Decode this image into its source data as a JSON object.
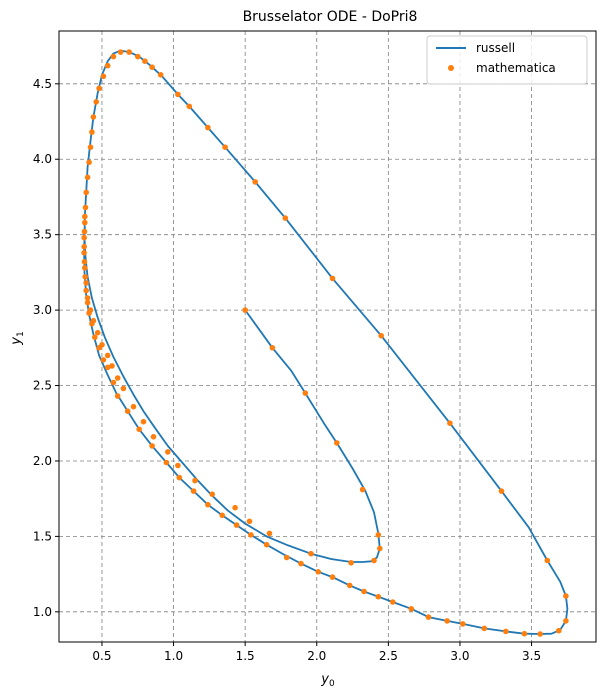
{
  "chart_data": {
    "type": "line",
    "title": "Brusselator ODE - DoPri8",
    "xlabel": "y",
    "xlabel_sub": "0",
    "ylabel": "y",
    "ylabel_sub": "1",
    "xlim": [
      0.2,
      3.95
    ],
    "ylim": [
      0.8,
      4.85
    ],
    "xticks": [
      0.5,
      1.0,
      1.5,
      2.0,
      2.5,
      3.0,
      3.5
    ],
    "xtick_labels": [
      "0.5",
      "1.0",
      "1.5",
      "2.0",
      "2.5",
      "3.0",
      "3.5"
    ],
    "yticks": [
      1.0,
      1.5,
      2.0,
      2.5,
      3.0,
      3.5,
      4.0,
      4.5
    ],
    "ytick_labels": [
      "1.0",
      "1.5",
      "2.0",
      "2.5",
      "3.0",
      "3.5",
      "4.0",
      "4.5"
    ],
    "grid": true,
    "legend_position": "top-right",
    "colors": {
      "russell": "#1f77b4",
      "mathematica": "#ff7f0e",
      "grid": "#808080"
    },
    "series": [
      {
        "name": "russell",
        "style": "line",
        "points": [
          [
            1.5,
            3.0
          ],
          [
            1.69,
            2.75
          ],
          [
            1.82,
            2.6
          ],
          [
            1.92,
            2.45
          ],
          [
            2.05,
            2.25
          ],
          [
            2.14,
            2.12
          ],
          [
            2.25,
            1.95
          ],
          [
            2.34,
            1.8
          ],
          [
            2.4,
            1.66
          ],
          [
            2.43,
            1.52
          ],
          [
            2.44,
            1.42
          ],
          [
            2.42,
            1.36
          ],
          [
            2.38,
            1.335
          ],
          [
            2.32,
            1.33
          ],
          [
            2.24,
            1.33
          ],
          [
            2.1,
            1.35
          ],
          [
            1.96,
            1.385
          ],
          [
            1.8,
            1.44
          ],
          [
            1.65,
            1.5
          ],
          [
            1.5,
            1.585
          ],
          [
            1.38,
            1.67
          ],
          [
            1.27,
            1.77
          ],
          [
            1.16,
            1.88
          ],
          [
            1.06,
            1.99
          ],
          [
            0.96,
            2.1
          ],
          [
            0.87,
            2.22
          ],
          [
            0.79,
            2.33
          ],
          [
            0.72,
            2.44
          ],
          [
            0.65,
            2.56
          ],
          [
            0.58,
            2.69
          ],
          [
            0.52,
            2.82
          ],
          [
            0.47,
            2.95
          ],
          [
            0.43,
            3.08
          ],
          [
            0.4,
            3.22
          ],
          [
            0.385,
            3.35
          ],
          [
            0.378,
            3.48
          ],
          [
            0.38,
            3.62
          ],
          [
            0.39,
            3.78
          ],
          [
            0.4,
            3.95
          ],
          [
            0.42,
            4.12
          ],
          [
            0.44,
            4.28
          ],
          [
            0.47,
            4.44
          ],
          [
            0.5,
            4.56
          ],
          [
            0.54,
            4.65
          ],
          [
            0.58,
            4.7
          ],
          [
            0.63,
            4.72
          ],
          [
            0.69,
            4.71
          ],
          [
            0.76,
            4.68
          ],
          [
            0.84,
            4.62
          ],
          [
            0.92,
            4.55
          ],
          [
            1.03,
            4.43
          ],
          [
            1.11,
            4.35
          ],
          [
            1.24,
            4.21
          ],
          [
            1.36,
            4.08
          ],
          [
            1.57,
            3.85
          ],
          [
            1.78,
            3.61
          ],
          [
            2.11,
            3.21
          ],
          [
            2.45,
            2.83
          ],
          [
            2.93,
            2.25
          ],
          [
            3.29,
            1.8
          ],
          [
            3.48,
            1.56
          ],
          [
            3.61,
            1.34
          ],
          [
            3.7,
            1.2
          ],
          [
            3.74,
            1.105
          ],
          [
            3.75,
            1.02
          ],
          [
            3.74,
            0.94
          ],
          [
            3.7,
            0.88
          ],
          [
            3.64,
            0.855
          ],
          [
            3.56,
            0.853
          ],
          [
            3.45,
            0.855
          ],
          [
            3.32,
            0.87
          ],
          [
            3.17,
            0.89
          ],
          [
            3.02,
            0.92
          ],
          [
            2.91,
            0.94
          ],
          [
            2.78,
            0.965
          ],
          [
            2.66,
            1.02
          ],
          [
            2.53,
            1.065
          ],
          [
            2.43,
            1.1
          ],
          [
            2.33,
            1.135
          ],
          [
            2.23,
            1.175
          ],
          [
            2.11,
            1.23
          ],
          [
            2.01,
            1.265
          ],
          [
            1.89,
            1.32
          ],
          [
            1.77,
            1.38
          ],
          [
            1.65,
            1.445
          ],
          [
            1.54,
            1.51
          ],
          [
            1.44,
            1.575
          ],
          [
            1.34,
            1.64
          ],
          [
            1.24,
            1.71
          ],
          [
            1.14,
            1.8
          ],
          [
            1.04,
            1.89
          ],
          [
            0.95,
            1.99
          ],
          [
            0.85,
            2.1
          ],
          [
            0.76,
            2.21
          ],
          [
            0.68,
            2.33
          ],
          [
            0.6,
            2.45
          ],
          [
            0.54,
            2.57
          ],
          [
            0.48,
            2.7
          ],
          [
            0.44,
            2.84
          ],
          [
            0.41,
            2.97
          ],
          [
            0.39,
            3.1
          ],
          [
            0.378,
            3.25
          ],
          [
            0.375,
            3.4
          ],
          [
            0.38,
            3.55
          ]
        ]
      },
      {
        "name": "mathematica",
        "style": "markers",
        "points": [
          [
            1.5,
            3.0
          ],
          [
            1.69,
            2.75
          ],
          [
            1.92,
            2.45
          ],
          [
            2.14,
            2.12
          ],
          [
            2.32,
            1.81
          ],
          [
            2.43,
            1.51
          ],
          [
            2.44,
            1.42
          ],
          [
            2.4,
            1.34
          ],
          [
            2.24,
            1.325
          ],
          [
            1.96,
            1.385
          ],
          [
            1.67,
            1.52
          ],
          [
            1.53,
            1.6
          ],
          [
            1.43,
            1.69
          ],
          [
            1.27,
            1.78
          ],
          [
            1.15,
            1.87
          ],
          [
            1.03,
            1.97
          ],
          [
            0.96,
            2.06
          ],
          [
            0.86,
            2.16
          ],
          [
            0.79,
            2.26
          ],
          [
            0.72,
            2.36
          ],
          [
            0.65,
            2.48
          ],
          [
            0.61,
            2.55
          ],
          [
            0.57,
            2.63
          ],
          [
            0.54,
            2.7
          ],
          [
            0.5,
            2.77
          ],
          [
            0.47,
            2.85
          ],
          [
            0.44,
            2.93
          ],
          [
            0.42,
            3.0
          ],
          [
            0.4,
            3.08
          ],
          [
            0.39,
            3.18
          ],
          [
            0.38,
            3.28
          ],
          [
            0.375,
            3.38
          ],
          [
            0.376,
            3.48
          ],
          [
            0.38,
            3.58
          ],
          [
            0.385,
            3.68
          ],
          [
            0.39,
            3.78
          ],
          [
            0.4,
            3.88
          ],
          [
            0.41,
            3.98
          ],
          [
            0.42,
            4.08
          ],
          [
            0.43,
            4.18
          ],
          [
            0.44,
            4.28
          ],
          [
            0.46,
            4.38
          ],
          [
            0.48,
            4.47
          ],
          [
            0.51,
            4.55
          ],
          [
            0.54,
            4.62
          ],
          [
            0.58,
            4.68
          ],
          [
            0.63,
            4.71
          ],
          [
            0.69,
            4.71
          ],
          [
            0.75,
            4.68
          ],
          [
            0.8,
            4.65
          ],
          [
            0.85,
            4.61
          ],
          [
            0.91,
            4.56
          ],
          [
            1.03,
            4.43
          ],
          [
            1.11,
            4.35
          ],
          [
            1.24,
            4.21
          ],
          [
            1.36,
            4.08
          ],
          [
            1.57,
            3.85
          ],
          [
            1.78,
            3.61
          ],
          [
            2.11,
            3.21
          ],
          [
            2.45,
            2.83
          ],
          [
            2.93,
            2.25
          ],
          [
            3.29,
            1.8
          ],
          [
            3.61,
            1.34
          ],
          [
            3.74,
            1.105
          ],
          [
            3.74,
            0.94
          ],
          [
            3.69,
            0.875
          ],
          [
            3.56,
            0.853
          ],
          [
            3.45,
            0.855
          ],
          [
            3.32,
            0.87
          ],
          [
            3.17,
            0.89
          ],
          [
            3.02,
            0.92
          ],
          [
            2.91,
            0.94
          ],
          [
            2.78,
            0.965
          ],
          [
            2.66,
            1.02
          ],
          [
            2.53,
            1.065
          ],
          [
            2.43,
            1.1
          ],
          [
            2.33,
            1.135
          ],
          [
            2.23,
            1.175
          ],
          [
            2.11,
            1.23
          ],
          [
            2.01,
            1.265
          ],
          [
            1.89,
            1.32
          ],
          [
            1.79,
            1.36
          ],
          [
            1.65,
            1.445
          ],
          [
            1.54,
            1.51
          ],
          [
            1.44,
            1.575
          ],
          [
            1.34,
            1.64
          ],
          [
            1.24,
            1.71
          ],
          [
            1.14,
            1.8
          ],
          [
            1.04,
            1.89
          ],
          [
            0.95,
            1.99
          ],
          [
            0.85,
            2.1
          ],
          [
            0.76,
            2.21
          ],
          [
            0.68,
            2.33
          ],
          [
            0.61,
            2.43
          ],
          [
            0.58,
            2.52
          ],
          [
            0.54,
            2.62
          ],
          [
            0.51,
            2.67
          ],
          [
            0.48,
            2.75
          ],
          [
            0.45,
            2.82
          ],
          [
            0.43,
            2.91
          ],
          [
            0.41,
            2.98
          ],
          [
            0.4,
            3.05
          ],
          [
            0.39,
            3.13
          ],
          [
            0.383,
            3.22
          ],
          [
            0.378,
            3.32
          ],
          [
            0.376,
            3.42
          ],
          [
            0.378,
            3.52
          ],
          [
            0.38,
            3.62
          ]
        ]
      }
    ]
  }
}
